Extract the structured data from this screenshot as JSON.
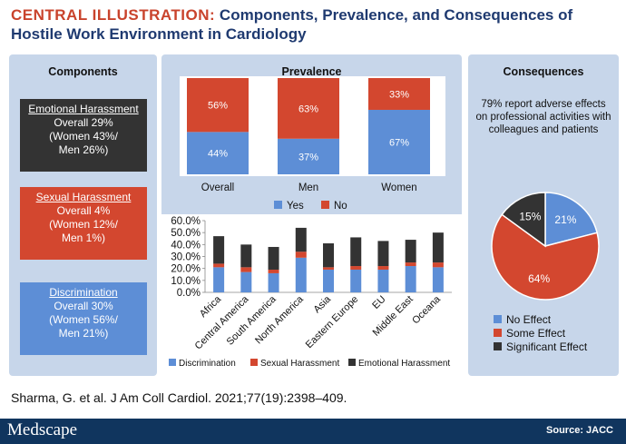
{
  "header": {
    "keyword": "CENTRAL ILLUSTRATION:",
    "title": "Components, Prevalence, and Consequences of Hostile Work Environment in Cardiology"
  },
  "components": {
    "title": "Components",
    "items": [
      {
        "name": "Emotional Harassment",
        "overall": "Overall 29%",
        "women": "(Women 43%/",
        "men": "Men 26%)",
        "color": "#333333"
      },
      {
        "name": "Sexual Harassment",
        "overall": "Overall 4%",
        "women": "(Women 12%/",
        "men": "Men 1%)",
        "color": "#d3472f"
      },
      {
        "name": "Discrimination",
        "overall": "Overall 30%",
        "women": "(Women 56%/",
        "men": "Men 21%)",
        "color": "#5d8ed6"
      }
    ]
  },
  "prevalence": {
    "title": "Prevalence"
  },
  "consequences": {
    "title": "Consequences",
    "text": "79% report adverse effects on professional activities with colleagues and patients"
  },
  "colors": {
    "discrimination": "#5d8ed6",
    "sexual": "#d3472f",
    "emotional": "#333333",
    "yes": "#5d8ed6",
    "no": "#d3472f"
  },
  "chart_data": [
    {
      "type": "bar",
      "stacked": true,
      "orientation": "vertical",
      "categories": [
        "Overall",
        "Men",
        "Women"
      ],
      "series": [
        {
          "name": "Yes",
          "values": [
            44,
            37,
            67
          ],
          "labels": [
            "44%",
            "37%",
            "67%"
          ],
          "color": "#5d8ed6"
        },
        {
          "name": "No",
          "values": [
            56,
            63,
            33
          ],
          "labels": [
            "56%",
            "63%",
            "33%"
          ],
          "color": "#d3472f"
        }
      ],
      "ylim": [
        0,
        100
      ],
      "legend": "bottom"
    },
    {
      "type": "bar",
      "stacked": true,
      "orientation": "vertical",
      "categories": [
        "Africa",
        "Central America",
        "South America",
        "North America",
        "Asia",
        "Eastern Europe",
        "EU",
        "Middle East",
        "Oceana"
      ],
      "series": [
        {
          "name": "Discrimination",
          "values": [
            21,
            17,
            16,
            29,
            19,
            19,
            19,
            22,
            21
          ],
          "color": "#5d8ed6"
        },
        {
          "name": "Sexual Harassment",
          "values": [
            3,
            4,
            3,
            5,
            2,
            3,
            3,
            3,
            4
          ],
          "color": "#d3472f"
        },
        {
          "name": "Emotional Harassment",
          "values": [
            23,
            19,
            19,
            20,
            20,
            24,
            21,
            19,
            25
          ],
          "color": "#333333"
        }
      ],
      "yticks": [
        "0.0%",
        "10.0%",
        "20.0%",
        "30.0%",
        "40.0%",
        "50.0%",
        "60.0%"
      ],
      "ylim": [
        0,
        60
      ],
      "legend": "bottom"
    },
    {
      "type": "pie",
      "slices": [
        {
          "name": "No Effect",
          "value": 21,
          "label": "21%",
          "color": "#5d8ed6"
        },
        {
          "name": "Some Effect",
          "value": 64,
          "label": "64%",
          "color": "#d3472f"
        },
        {
          "name": "Significant Effect",
          "value": 15,
          "label": "15%",
          "color": "#333333"
        }
      ],
      "legend": "bottom"
    }
  ],
  "citation": "Sharma, G. et al. J Am Coll Cardiol. 2021;77(19):2398–409.",
  "footer": {
    "logo": "Medscape",
    "source": "Source: JACC"
  }
}
